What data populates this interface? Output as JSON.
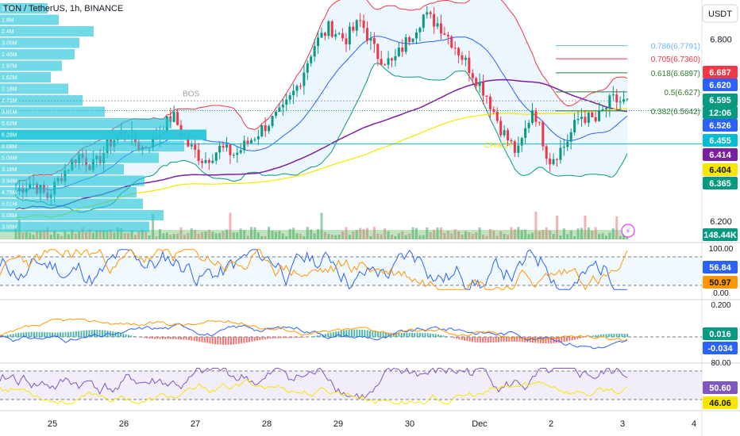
{
  "header": {
    "symbol_title": "TON / TetherUS, 1h, BINANCE",
    "currency": "USDT"
  },
  "chart_data": {
    "type": "candlestick",
    "symbol": "TON / TetherUS",
    "interval": "1h",
    "exchange": "BINANCE",
    "price_axis": {
      "range": [
        6.14,
        6.93
      ],
      "ticks": [
        "6.800",
        "6.200"
      ],
      "tick_values": [
        6.8,
        6.2
      ]
    },
    "time_axis": {
      "labels": [
        "25",
        "26",
        "27",
        "28",
        "29",
        "30",
        "Dec",
        "2",
        "3",
        "4"
      ],
      "day_index": [
        0,
        1,
        2,
        3,
        4,
        5,
        6,
        7,
        8,
        9
      ]
    },
    "price_badges": [
      {
        "text": "6.687",
        "value": 6.687,
        "color": "#f23645"
      },
      {
        "text": "6.620",
        "value": 6.62,
        "color": "#2962ff"
      },
      {
        "text": "6.595",
        "value": 6.595,
        "color": "#089981"
      },
      {
        "text": "12:06",
        "value": 6.574,
        "color": "#089981"
      },
      {
        "text": "6.526",
        "value": 6.526,
        "color": "#2962ff"
      },
      {
        "text": "6.455",
        "value": 6.455,
        "color": "#00bcd4"
      },
      {
        "text": "6.414",
        "value": 6.414,
        "color": "#7b1fa2"
      },
      {
        "text": "6.404",
        "value": 6.404,
        "color": "#f7e600"
      },
      {
        "text": "6.365",
        "value": 6.365,
        "color": "#089981"
      }
    ],
    "fib_levels": [
      {
        "text": "0.786(6.7791)",
        "value": 6.7791,
        "color": "#64b5f6"
      },
      {
        "text": "0.705(6.7360)",
        "value": 6.736,
        "color": "#f23645"
      },
      {
        "text": "0.618(6.6897)",
        "value": 6.6897,
        "color": "#2e7d32"
      },
      {
        "text": "0.5(6.627)",
        "value": 6.627,
        "color": "#2e7d32"
      },
      {
        "text": "0.382(6.5642)",
        "value": 6.5642,
        "color": "#2e7d32"
      }
    ],
    "annotations": [
      {
        "text": "BOS",
        "value": 6.597,
        "color": "#9e9e9e"
      },
      {
        "text": "CHoCH",
        "value": 6.455,
        "color": "#f7e600"
      }
    ],
    "volume_badge": "148.44K",
    "volume_profile_labels": [
      "1.87M",
      "1.9M",
      "2.4M",
      "3.05M",
      "2.46M",
      "1.97M",
      "1.62M",
      "2.18M",
      "2.71M",
      "3.81M",
      "5.62M",
      "6.28M",
      "6.08M",
      "5.04M",
      "3.18M",
      "3.94M",
      "4.75M",
      "5.01M",
      "5.08M",
      "3.98M"
    ],
    "ohlc_path": [
      6.3,
      6.33,
      6.28,
      6.36,
      6.42,
      6.38,
      6.46,
      6.5,
      6.44,
      6.48,
      6.55,
      6.45,
      6.4,
      6.44,
      6.42,
      6.47,
      6.52,
      6.56,
      6.65,
      6.78,
      6.84,
      6.8,
      6.86,
      6.75,
      6.72,
      6.8,
      6.88,
      6.85,
      6.78,
      6.7,
      6.62,
      6.5,
      6.42,
      6.58,
      6.4,
      6.45,
      6.55,
      6.53,
      6.6,
      6.59
    ],
    "stoch_rsi": {
      "ticks": [
        "100.00",
        "0.00"
      ],
      "k_value": "56.84",
      "d_value": "50.97",
      "k_color": "#2962ff",
      "d_color": "#ff9800"
    },
    "macd": {
      "ticks": [
        "0.200"
      ],
      "macd_value": "0.016",
      "signal_value": "-0.034",
      "macd_color": "#089981",
      "signal_color": "#2962ff"
    },
    "rsi": {
      "ticks": [
        "80.00"
      ],
      "rsi_value": "50.60",
      "ma_value": "46.06",
      "rsi_color": "#7e57c2",
      "ma_color": "#f7e600"
    }
  }
}
